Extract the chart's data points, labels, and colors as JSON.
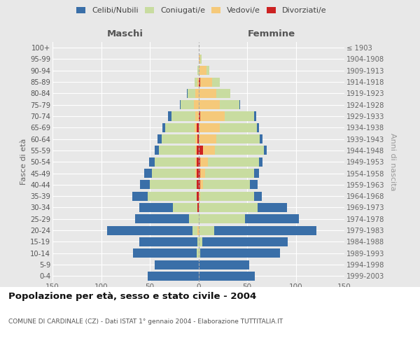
{
  "age_groups": [
    "0-4",
    "5-9",
    "10-14",
    "15-19",
    "20-24",
    "25-29",
    "30-34",
    "35-39",
    "40-44",
    "45-49",
    "50-54",
    "55-59",
    "60-64",
    "65-69",
    "70-74",
    "75-79",
    "80-84",
    "85-89",
    "90-94",
    "95-99",
    "100+"
  ],
  "birth_years": [
    "1999-2003",
    "1994-1998",
    "1989-1993",
    "1984-1988",
    "1979-1983",
    "1974-1978",
    "1969-1973",
    "1964-1968",
    "1959-1963",
    "1954-1958",
    "1949-1953",
    "1944-1948",
    "1939-1943",
    "1934-1938",
    "1929-1933",
    "1924-1928",
    "1919-1923",
    "1914-1918",
    "1909-1913",
    "1904-1908",
    "≤ 1903"
  ],
  "colors": {
    "celibi": "#3a6fa8",
    "coniugati": "#c8dca0",
    "vedovi": "#f5c97a",
    "divorziati": "#cc2222"
  },
  "males": {
    "celibi": [
      52,
      45,
      65,
      60,
      88,
      55,
      35,
      16,
      10,
      8,
      6,
      4,
      4,
      3,
      3,
      1,
      1,
      0,
      0,
      0,
      0
    ],
    "coniugati": [
      0,
      0,
      2,
      1,
      5,
      10,
      25,
      50,
      48,
      45,
      42,
      38,
      35,
      30,
      25,
      13,
      8,
      3,
      1,
      0,
      0
    ],
    "vedovi": [
      0,
      0,
      0,
      0,
      1,
      0,
      0,
      0,
      0,
      1,
      1,
      1,
      2,
      2,
      3,
      5,
      3,
      1,
      0,
      0,
      0
    ],
    "divorziati": [
      0,
      0,
      0,
      0,
      0,
      0,
      1,
      2,
      2,
      2,
      2,
      2,
      1,
      2,
      0,
      0,
      0,
      0,
      0,
      0,
      0
    ]
  },
  "females": {
    "celibi": [
      58,
      52,
      82,
      88,
      105,
      55,
      30,
      8,
      8,
      5,
      4,
      3,
      3,
      2,
      2,
      1,
      0,
      0,
      0,
      0,
      0
    ],
    "coniugati": [
      0,
      0,
      2,
      4,
      15,
      48,
      60,
      55,
      48,
      50,
      52,
      50,
      45,
      38,
      30,
      20,
      15,
      8,
      3,
      1,
      0
    ],
    "vedovi": [
      0,
      0,
      0,
      0,
      1,
      0,
      1,
      2,
      3,
      5,
      8,
      12,
      18,
      22,
      25,
      22,
      18,
      12,
      8,
      2,
      0
    ],
    "divorziati": [
      0,
      0,
      0,
      0,
      0,
      0,
      0,
      0,
      2,
      2,
      2,
      5,
      0,
      0,
      2,
      0,
      0,
      2,
      0,
      0,
      0
    ]
  },
  "title": "Popolazione per età, sesso e stato civile - 2004",
  "subtitle": "COMUNE DI CARDINALE (CZ) - Dati ISTAT 1° gennaio 2004 - Elaborazione TUTTITALIA.IT",
  "xlabel_left": "Maschi",
  "xlabel_right": "Femmine",
  "ylabel_left": "Fasce di età",
  "ylabel_right": "Anni di nascita",
  "xlim": 150,
  "legend_labels": [
    "Celibi/Nubili",
    "Coniugati/e",
    "Vedovi/e",
    "Divorziati/e"
  ],
  "bg_chart": "#e8e8e8",
  "bg_bottom": "#ffffff"
}
